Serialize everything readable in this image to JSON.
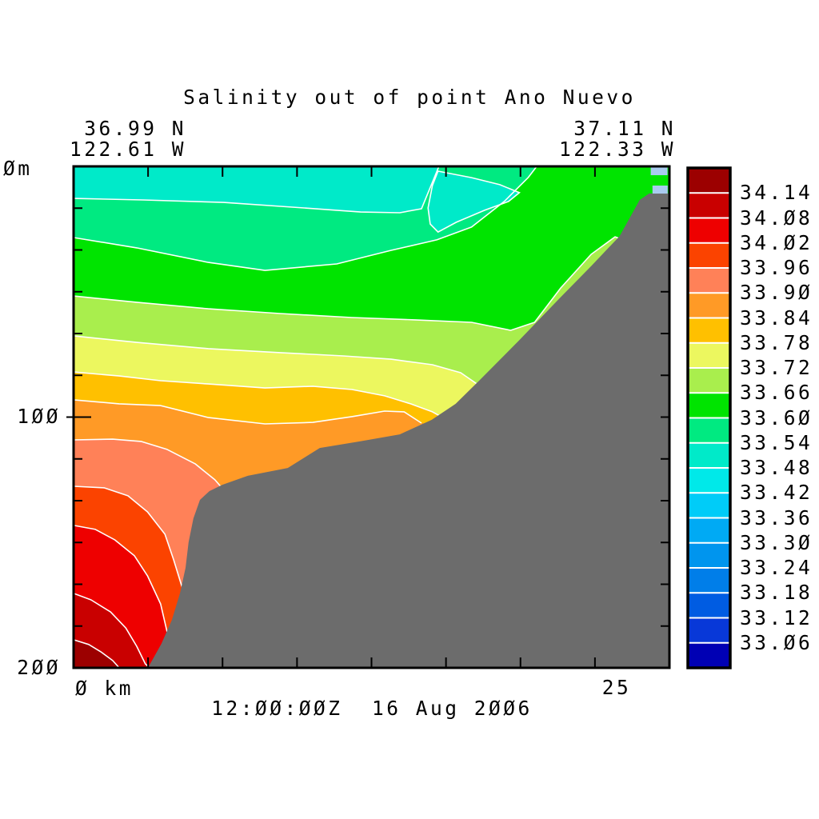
{
  "figure": {
    "title": "Salinity out of point Ano Nuevo",
    "time_label": "12:00:00Z  16 Aug 2006",
    "left_endpoint": {
      "lat": "36.99 N",
      "lon": "122.61 W"
    },
    "right_endpoint": {
      "lat": "37.11 N",
      "lon": "122.33 W"
    },
    "y_axis": {
      "label_top": "0m",
      "label_mid": "100",
      "label_bottom": "200"
    },
    "x_axis": {
      "label_left": "0 km",
      "label_right": "25"
    }
  },
  "chart_data": {
    "type": "filled_contour_section",
    "variable": "salinity",
    "title": "Salinity out of point Ano Nuevo",
    "timestamp": "12:00:00Z 16 Aug 2006",
    "section_endpoints": {
      "left": {
        "lat_deg_n": 36.99,
        "lon_deg_w": 122.61
      },
      "right": {
        "lat_deg_n": 37.11,
        "lon_deg_w": 122.33
      }
    },
    "x": {
      "label": "km",
      "range": [
        0,
        27.4
      ],
      "shown_ticks": [
        0,
        25
      ],
      "minor_tick_step_km": 3.425
    },
    "y": {
      "label": "m",
      "range": [
        0,
        200
      ],
      "shown_ticks": [
        0,
        100,
        200
      ],
      "minor_tick_step_m": 16.667
    },
    "levels": [
      33.06,
      33.12,
      33.18,
      33.24,
      33.3,
      33.36,
      33.42,
      33.48,
      33.54,
      33.6,
      33.66,
      33.72,
      33.78,
      33.84,
      33.9,
      33.96,
      34.02,
      34.08,
      34.14
    ],
    "colorbar_labels_top_to_bottom": [
      "34.14",
      "34.08",
      "34.02",
      "33.96",
      "33.90",
      "33.84",
      "33.78",
      "33.72",
      "33.66",
      "33.60",
      "33.54",
      "33.48",
      "33.42",
      "33.36",
      "33.30",
      "33.24",
      "33.18",
      "33.12",
      "33.06"
    ],
    "palette": {
      "band_colors_low_to_high": [
        "#0000b4",
        "#0838d8",
        "#005ce2",
        "#007ee9",
        "#0095ee",
        "#00aaf4",
        "#00ccf8",
        "#00e9e9",
        "#00eac9",
        "#00ea81",
        "#00e400",
        "#a9ee4d",
        "#ecf75f",
        "#ffc000",
        "#ff9a26",
        "#ff8158",
        "#fb4300",
        "#ee0000",
        "#c90000",
        "#9c0000"
      ],
      "surface_band_index": 8,
      "land_gray": "#6c6c6c",
      "contour_line": "#ffffff",
      "frame_black": "#000000",
      "anomaly_patch_blue": "#a9cbef"
    },
    "isolines": [
      {
        "level": 33.54,
        "ends_at_surface": true,
        "points_km_m": [
          [
            0,
            12.8
          ],
          [
            3.2,
            13.4
          ],
          [
            6.9,
            14.4
          ],
          [
            10.6,
            16.6
          ],
          [
            13.2,
            18.2
          ],
          [
            15.0,
            18.5
          ],
          [
            16.0,
            16.9
          ],
          [
            16.8,
            0
          ]
        ]
      },
      {
        "level": 33.6,
        "ends_at_surface": true,
        "points_km_m": [
          [
            0,
            28.4
          ],
          [
            2.9,
            32.5
          ],
          [
            6.2,
            38.3
          ],
          [
            8.8,
            41.5
          ],
          [
            12.1,
            38.9
          ],
          [
            14.6,
            33.5
          ],
          [
            16.7,
            29.3
          ],
          [
            18.3,
            24.2
          ],
          [
            19.8,
            14.0
          ],
          [
            20.9,
            4.5
          ],
          [
            21.3,
            0
          ]
        ]
      },
      {
        "level": 33.66,
        "ends_at_surface": false,
        "points_km_m": [
          [
            0,
            51.7
          ],
          [
            2.9,
            54.2
          ],
          [
            6.2,
            56.8
          ],
          [
            9.5,
            58.7
          ],
          [
            12.8,
            60.3
          ],
          [
            15.7,
            61.2
          ],
          [
            18.3,
            62.2
          ],
          [
            20.1,
            65.4
          ],
          [
            21.2,
            62.2
          ],
          [
            22.4,
            48.5
          ],
          [
            23.8,
            35.1
          ],
          [
            24.9,
            28.1
          ],
          [
            25.5,
            30.0
          ]
        ]
      },
      {
        "level": 33.72,
        "ends_at_surface": false,
        "points_km_m": [
          [
            0,
            67.6
          ],
          [
            2.9,
            70.2
          ],
          [
            6.2,
            72.7
          ],
          [
            9.5,
            74.3
          ],
          [
            12.4,
            75.6
          ],
          [
            14.6,
            76.9
          ],
          [
            16.5,
            79.1
          ],
          [
            17.8,
            82.3
          ],
          [
            18.7,
            87.7
          ],
          [
            19.2,
            93.1
          ]
        ]
      },
      {
        "level": 33.78,
        "ends_at_surface": false,
        "points_km_m": [
          [
            0,
            82.0
          ],
          [
            2.1,
            83.6
          ],
          [
            4.0,
            85.5
          ],
          [
            6.2,
            86.8
          ],
          [
            8.8,
            88.4
          ],
          [
            11.0,
            87.7
          ],
          [
            12.8,
            89.0
          ],
          [
            14.3,
            91.5
          ],
          [
            15.5,
            94.7
          ],
          [
            16.5,
            97.9
          ],
          [
            16.9,
            99.8
          ]
        ]
      },
      {
        "level": 33.84,
        "ends_at_surface": false,
        "points_km_m": [
          [
            0,
            93.1
          ],
          [
            2.1,
            94.7
          ],
          [
            4.0,
            95.4
          ],
          [
            6.2,
            100.2
          ],
          [
            8.8,
            102.7
          ],
          [
            11.0,
            102.1
          ],
          [
            12.8,
            99.8
          ],
          [
            14.3,
            97.6
          ],
          [
            15.2,
            97.9
          ],
          [
            16.0,
            102.4
          ]
        ]
      },
      {
        "level": 33.9,
        "ends_at_surface": false,
        "points_km_m": [
          [
            0,
            109.1
          ],
          [
            1.8,
            108.8
          ],
          [
            3.1,
            109.7
          ],
          [
            4.3,
            112.9
          ],
          [
            5.6,
            118.7
          ],
          [
            6.5,
            125.0
          ],
          [
            7.4,
            134.0
          ]
        ]
      },
      {
        "level": 33.96,
        "ends_at_surface": false,
        "points_km_m": [
          [
            0,
            127.6
          ],
          [
            1.4,
            128.2
          ],
          [
            2.5,
            131.4
          ],
          [
            3.4,
            137.8
          ],
          [
            4.2,
            146.7
          ],
          [
            4.6,
            156.9
          ],
          [
            5.0,
            168.1
          ]
        ]
      },
      {
        "level": 34.02,
        "ends_at_surface": false,
        "points_km_m": [
          [
            0,
            143.2
          ],
          [
            1.0,
            144.8
          ],
          [
            1.9,
            149.0
          ],
          [
            2.8,
            155.3
          ],
          [
            3.4,
            163.3
          ],
          [
            4.0,
            174.5
          ],
          [
            4.3,
            185.6
          ]
        ]
      },
      {
        "level": 34.08,
        "ends_at_surface": false,
        "points_km_m": [
          [
            0,
            170.3
          ],
          [
            0.8,
            172.9
          ],
          [
            1.7,
            177.7
          ],
          [
            2.4,
            184.1
          ],
          [
            2.9,
            191.4
          ],
          [
            3.3,
            198.4
          ],
          [
            3.5,
            200
          ]
        ]
      },
      {
        "level": 34.14,
        "ends_at_surface": false,
        "points_km_m": [
          [
            0,
            188.8
          ],
          [
            0.7,
            190.7
          ],
          [
            1.25,
            193.6
          ],
          [
            1.8,
            197.1
          ],
          [
            2.1,
            200
          ]
        ]
      }
    ],
    "detached_surface_lens": {
      "band_level_range": [
        33.48,
        33.54
      ],
      "points_km_m": [
        [
          16.76,
          1.9
        ],
        [
          18.3,
          4.5
        ],
        [
          19.6,
          7.3
        ],
        [
          20.5,
          10.5
        ],
        [
          20.0,
          14.0
        ],
        [
          18.9,
          17.5
        ],
        [
          17.6,
          22.3
        ],
        [
          16.76,
          26.2
        ],
        [
          16.4,
          23.0
        ],
        [
          16.3,
          16.6
        ],
        [
          16.5,
          7.7
        ]
      ]
    },
    "bathymetry_km_m": [
      [
        3.42,
        200
      ],
      [
        4.04,
        190.4
      ],
      [
        4.52,
        180.9
      ],
      [
        4.89,
        170.3
      ],
      [
        5.15,
        160.1
      ],
      [
        5.29,
        149.9
      ],
      [
        5.51,
        140.4
      ],
      [
        5.81,
        133.0
      ],
      [
        6.25,
        129.5
      ],
      [
        6.84,
        127.0
      ],
      [
        8.01,
        123.4
      ],
      [
        9.85,
        120.3
      ],
      [
        11.32,
        112.3
      ],
      [
        13.16,
        109.7
      ],
      [
        15.0,
        106.9
      ],
      [
        16.47,
        101.1
      ],
      [
        17.57,
        94.7
      ],
      [
        18.68,
        85.2
      ],
      [
        20.51,
        69.2
      ],
      [
        22.35,
        52.6
      ],
      [
        23.82,
        39.6
      ],
      [
        25.11,
        27.8
      ],
      [
        26.03,
        13.4
      ],
      [
        26.47,
        10.8
      ],
      [
        27.4,
        10.8
      ]
    ],
    "surface_patches_km_m": [
      {
        "x": 26.54,
        "y": 0.32,
        "w": 0.77,
        "h": 3.2
      },
      {
        "x": 26.62,
        "y": 7.66,
        "w": 0.7,
        "h": 3.2
      }
    ]
  }
}
